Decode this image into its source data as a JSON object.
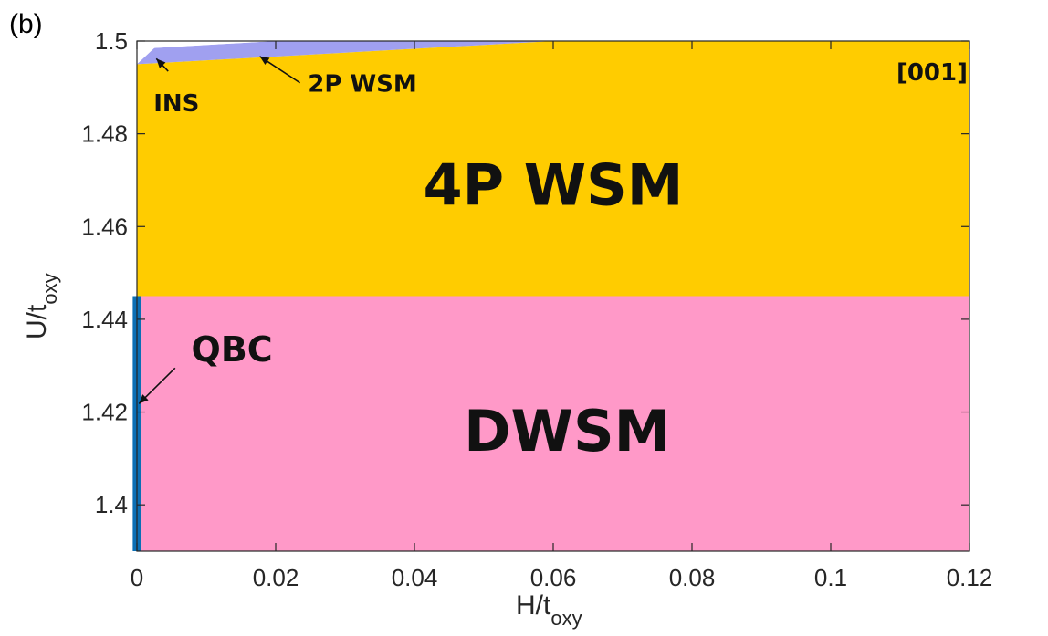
{
  "chart_data": {
    "type": "area",
    "panel_label": "(b)",
    "direction_label": "[001]",
    "xlabel": {
      "main": "H/t",
      "sub": "oxy"
    },
    "ylabel": {
      "main": "U/t",
      "sub": "oxy"
    },
    "xlim": [
      0,
      0.12
    ],
    "ylim": [
      1.39,
      1.5
    ],
    "x_ticks": [
      0,
      0.02,
      0.04,
      0.06,
      0.08,
      0.1,
      0.12
    ],
    "x_tick_labels": [
      "0",
      "0.02",
      "0.04",
      "0.06",
      "0.08",
      "0.1",
      "0.12"
    ],
    "y_ticks": [
      1.4,
      1.42,
      1.44,
      1.46,
      1.48,
      1.5
    ],
    "y_tick_labels": [
      "1.4",
      "1.42",
      "1.44",
      "1.46",
      "1.48",
      "1.5"
    ],
    "regions": [
      {
        "name": "DWSM",
        "color": "#ff99c8",
        "polygon": [
          [
            0,
            1.39
          ],
          [
            0.12,
            1.39
          ],
          [
            0.12,
            1.445
          ],
          [
            0,
            1.445
          ]
        ]
      },
      {
        "name": "4P WSM",
        "color": "#ffcc00",
        "polygon": [
          [
            0,
            1.445
          ],
          [
            0.12,
            1.445
          ],
          [
            0.12,
            1.5
          ],
          [
            0.06,
            1.5
          ],
          [
            0,
            1.495
          ]
        ]
      },
      {
        "name": "2P WSM",
        "color": "#a0a0f0",
        "polygon": [
          [
            0,
            1.495
          ],
          [
            0.06,
            1.5
          ],
          [
            0.02,
            1.5
          ],
          [
            0.0025,
            1.4985
          ]
        ]
      },
      {
        "name": "INS",
        "color": "#ffffff",
        "polygon": [
          [
            0,
            1.495
          ],
          [
            0.0025,
            1.4985
          ],
          [
            0.02,
            1.5
          ],
          [
            0,
            1.5
          ]
        ]
      },
      {
        "name": "QBC",
        "color": "#0b6fb5",
        "polygon": [
          [
            -0.0006,
            1.39
          ],
          [
            0.0006,
            1.39
          ],
          [
            0.0006,
            1.445
          ],
          [
            -0.0006,
            1.445
          ]
        ]
      }
    ],
    "annotations": [
      {
        "text": "4P WSM",
        "style": "big",
        "x": 0.06,
        "y": 1.468
      },
      {
        "text": "DWSM",
        "style": "big",
        "x": 0.062,
        "y": 1.415
      },
      {
        "text": "QBC",
        "style": "med",
        "x": 0.0137,
        "y": 1.433
      },
      {
        "text": "INS",
        "style": "small",
        "x": 0.0057,
        "y": 1.4863
      },
      {
        "text": "2P WSM",
        "style": "small",
        "x": 0.0325,
        "y": 1.4906
      }
    ],
    "arrows": [
      {
        "from": [
          0.0045,
          1.4935
        ],
        "to": [
          0.0028,
          1.4962
        ]
      },
      {
        "from": [
          0.0235,
          1.491
        ],
        "to": [
          0.0177,
          1.4967
        ]
      },
      {
        "from": [
          0.0055,
          1.4295
        ],
        "to": [
          0.0003,
          1.4218
        ]
      }
    ]
  }
}
